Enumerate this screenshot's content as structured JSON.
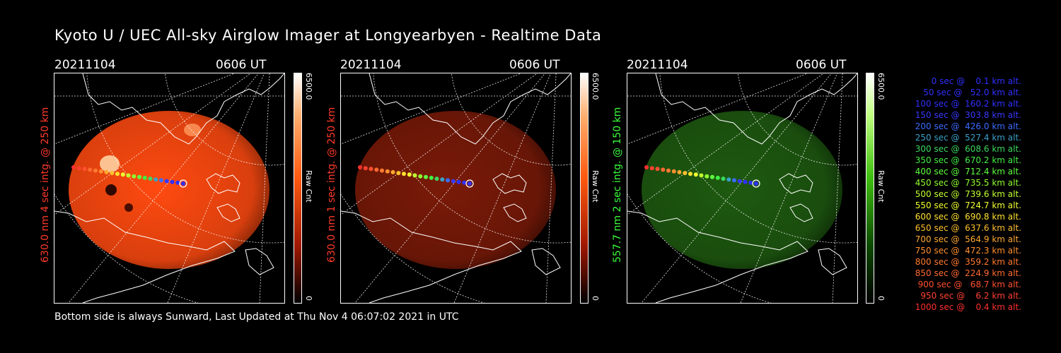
{
  "title": "Kyoto U / UEC All-sky Airglow Imager at Longyearbyen - Realtime Data",
  "footer": "Bottom side is always Sunward, Last Updated at Thu Nov  4 06:07:02 2021 in UTC",
  "panels": [
    {
      "date": "20211104",
      "time": "0606 UT",
      "label": "630.0 nm 4 sec intg. @ 250 km",
      "label_color": "#ff3a2a",
      "cbar_max": "6500.0",
      "cbar_min": "0",
      "cbar_unit": "Raw Cnt",
      "glow": "#ff4a10"
    },
    {
      "date": "20211104",
      "time": "0606 UT",
      "label": "630.0 nm 1 sec intg. @ 250 km",
      "label_color": "#ff3a2a",
      "cbar_max": "6500.0",
      "cbar_min": "0",
      "cbar_unit": "Raw Cnt",
      "glow": "#7a1a08"
    },
    {
      "date": "20211104",
      "time": "0606 UT",
      "label": "557.7 nm 2 sec intg. @ 150 km",
      "label_color": "#3aff3a",
      "cbar_max": "6500.0",
      "cbar_min": "0",
      "cbar_unit": "Raw Cnt",
      "glow": "#1e5a10"
    }
  ],
  "legend": [
    {
      "text": "   0 sec @    0.1 km alt.",
      "color": "#3030ff"
    },
    {
      "text": "  50 sec @   52.0 km alt.",
      "color": "#3030ff"
    },
    {
      "text": " 100 sec @  160.2 km alt.",
      "color": "#3030ff"
    },
    {
      "text": " 150 sec @  303.8 km alt.",
      "color": "#3838ff"
    },
    {
      "text": " 200 sec @  426.0 km alt.",
      "color": "#3a6cff"
    },
    {
      "text": " 250 sec @  527.4 km alt.",
      "color": "#3aa0c8"
    },
    {
      "text": " 300 sec @  608.6 km alt.",
      "color": "#3cd860"
    },
    {
      "text": " 350 sec @  670.2 km alt.",
      "color": "#40f040"
    },
    {
      "text": " 400 sec @  712.4 km alt.",
      "color": "#60ff40"
    },
    {
      "text": " 450 sec @  735.5 km alt.",
      "color": "#90ff30"
    },
    {
      "text": " 500 sec @  739.6 km alt.",
      "color": "#c0ff30"
    },
    {
      "text": " 550 sec @  724.7 km alt.",
      "color": "#f0ff30"
    },
    {
      "text": " 600 sec @  690.8 km alt.",
      "color": "#ffe030"
    },
    {
      "text": " 650 sec @  637.6 km alt.",
      "color": "#ffc030"
    },
    {
      "text": " 700 sec @  564.9 km alt.",
      "color": "#ffa830"
    },
    {
      "text": " 750 sec @  472.3 km alt.",
      "color": "#ff9030"
    },
    {
      "text": " 800 sec @  359.2 km alt.",
      "color": "#ff7a30"
    },
    {
      "text": " 850 sec @  224.9 km alt.",
      "color": "#ff6a30"
    },
    {
      "text": " 900 sec @   68.7 km alt.",
      "color": "#ff5030"
    },
    {
      "text": " 950 sec @    6.2 km alt.",
      "color": "#ff4030"
    },
    {
      "text": "1000 sec @    0.4 km alt.",
      "color": "#ff3030"
    }
  ]
}
